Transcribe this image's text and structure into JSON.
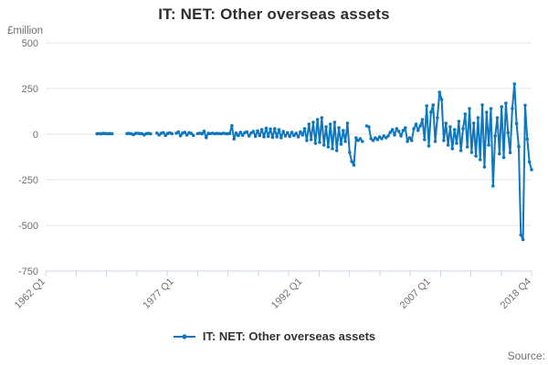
{
  "chart": {
    "title": "IT: NET: Other overseas assets",
    "y_unit": "£million"
  },
  "legend": {
    "label": "IT: NET: Other overseas assets"
  },
  "footer": {
    "source_label": "Source:"
  },
  "colors": {
    "series_line": "#1077bd",
    "gridline": "#e6e6e6",
    "axis_line": "#ccd6eb",
    "tick_label": "#707070",
    "title_text": "#2e2e2e"
  },
  "chart_data": {
    "type": "line",
    "title": "IT: NET: Other overseas assets",
    "ylabel": "£million",
    "ylim": [
      -750,
      500
    ],
    "y_ticks": [
      500,
      250,
      0,
      -250,
      -500,
      -750
    ],
    "grid": "horizontal",
    "legend_position": "bottom-center",
    "x_domain": {
      "start": "1962 Q1",
      "end": "2018 Q4",
      "num_quarters": 228,
      "frequency": "quarterly"
    },
    "x_tick_labels": [
      {
        "label": "1962 Q1",
        "quarter_index": 0
      },
      {
        "label": "1977 Q1",
        "quarter_index": 60
      },
      {
        "label": "1992 Q1",
        "quarter_index": 120
      },
      {
        "label": "2007 Q1",
        "quarter_index": 180
      },
      {
        "label": "2018 Q4",
        "quarter_index": 227
      }
    ],
    "minor_tick_count": 17,
    "series": [
      {
        "name": "IT: NET: Other overseas assets",
        "start": "1968 Q1",
        "start_quarter_index": 24,
        "frequency": "quarterly",
        "values": [
          2,
          3,
          2,
          4,
          3,
          2,
          3,
          2,
          null,
          null,
          null,
          null,
          null,
          null,
          3,
          4,
          2,
          -3,
          4,
          5,
          3,
          2,
          -4,
          3,
          4,
          2,
          null,
          null,
          6,
          -5,
          5,
          8,
          -7,
          4,
          7,
          2,
          null,
          5,
          12,
          -9,
          6,
          10,
          -5,
          8,
          4,
          -7,
          null,
          3,
          5,
          2,
          16,
          -19,
          4,
          3,
          5,
          2,
          4,
          3,
          2,
          5,
          3,
          2,
          4,
          46,
          -26,
          6,
          -8,
          10,
          -6,
          8,
          12,
          -10,
          6,
          15,
          -12,
          18,
          -8,
          25,
          -15,
          32,
          -12,
          28,
          -18,
          30,
          -15,
          25,
          -20,
          15,
          -10,
          8,
          -12,
          10,
          -8,
          5,
          -15,
          12,
          -5,
          30,
          -35,
          55,
          -30,
          65,
          -50,
          80,
          -45,
          90,
          -60,
          40,
          -70,
          55,
          -80,
          65,
          -90,
          35,
          -55,
          20,
          -40,
          60,
          -100,
          -150,
          -170,
          -20,
          -35,
          -25,
          -40,
          null,
          45,
          40,
          -25,
          -35,
          -20,
          -30,
          -15,
          -25,
          -10,
          -20,
          -10,
          10,
          25,
          -5,
          30,
          15,
          -10,
          20,
          35,
          -40,
          -20,
          -35,
          30,
          55,
          20,
          45,
          80,
          -30,
          155,
          -65,
          120,
          160,
          -40,
          90,
          230,
          190,
          -35,
          60,
          -60,
          40,
          -80,
          25,
          -50,
          70,
          -90,
          30,
          110,
          -70,
          140,
          -100,
          60,
          -120,
          90,
          -140,
          160,
          -180,
          120,
          -60,
          140,
          -284,
          -10,
          90,
          -108,
          150,
          -128,
          170,
          8,
          -101,
          140,
          275,
          58,
          -68,
          -553,
          -578,
          158,
          -27,
          -152,
          -195
        ]
      }
    ]
  }
}
